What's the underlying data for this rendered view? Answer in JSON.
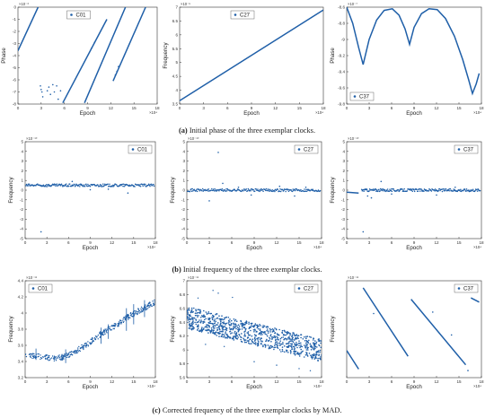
{
  "figure": {
    "captions": [
      {
        "label": "(a)",
        "text": "Initial phase of the three exemplar clocks."
      },
      {
        "label": "(b)",
        "text": "Initial frequency of the three exemplar clocks."
      },
      {
        "label": "(c)",
        "text": "Corrected frequency of the three exemplar clocks by MAD."
      }
    ]
  },
  "chart_data": [
    {
      "id": "a1",
      "type": "scatter",
      "series": [
        {
          "name": "C01"
        }
      ],
      "xlabel": "Epoch",
      "ylabel": "Phase",
      "x_exponent": "×10⁴",
      "y_exponent": "×10⁻³",
      "xlim": [
        0,
        18
      ],
      "ylim": [
        -8,
        0
      ],
      "xticks": [
        0,
        3,
        6,
        9,
        12,
        15,
        18
      ],
      "yticks": [
        0,
        -1,
        -2,
        -3,
        -4,
        -5,
        -6,
        -7,
        -8
      ],
      "legend": "top-center",
      "color": "#1f5fa8",
      "segments": [
        [
          [
            0,
            -3.6
          ],
          [
            2.6,
            0
          ]
        ],
        [
          [
            5.8,
            -7.9
          ],
          [
            11.5,
            -1.0
          ]
        ],
        [
          [
            8.6,
            -7.9
          ],
          [
            13.9,
            0
          ]
        ],
        [
          [
            12.3,
            -6.1
          ],
          [
            16.5,
            0
          ]
        ]
      ],
      "points": [
        [
          2.9,
          -6.5
        ],
        [
          3.0,
          -6.8
        ],
        [
          3.1,
          -7.0
        ],
        [
          3.2,
          -7.4
        ],
        [
          3.8,
          -6.9
        ],
        [
          4.0,
          -6.6
        ],
        [
          4.2,
          -7.2
        ],
        [
          4.5,
          -6.4
        ],
        [
          4.7,
          -7.0
        ],
        [
          5.0,
          -6.5
        ],
        [
          5.2,
          -7.6
        ],
        [
          5.5,
          -6.9
        ],
        [
          12.6,
          -5.6
        ],
        [
          12.8,
          -5.3
        ],
        [
          13.0,
          -4.9
        ],
        [
          9.5,
          -3.4
        ],
        [
          9.9,
          -2.9
        ]
      ]
    },
    {
      "id": "a2",
      "type": "line",
      "series": [
        {
          "name": "C27"
        }
      ],
      "xlabel": "Epoch",
      "ylabel": "Frequency",
      "x_exponent": "×10⁴",
      "y_exponent": "×10⁻⁵",
      "xlim": [
        0,
        18
      ],
      "ylim": [
        3.5,
        7
      ],
      "xticks": [
        0,
        3,
        6,
        9,
        12,
        15,
        18
      ],
      "yticks": [
        3.5,
        4,
        4.5,
        5,
        5.5,
        6,
        6.5,
        7
      ],
      "legend": "top-center",
      "color": "#1f5fa8",
      "segments": [
        [
          [
            0,
            3.62
          ],
          [
            18,
            6.9
          ]
        ]
      ],
      "points": []
    },
    {
      "id": "a3",
      "type": "line",
      "series": [
        {
          "name": "C37"
        }
      ],
      "xlabel": "Epoch",
      "ylabel": "Phase",
      "x_exponent": "×10⁴",
      "y_exponent": "×10⁻⁷",
      "xlim": [
        0,
        18
      ],
      "ylim": [
        -9.8,
        -8.6
      ],
      "xticks": [
        0,
        3,
        6,
        9,
        12,
        15,
        18
      ],
      "yticks": [
        -8.6,
        -8.8,
        -9,
        -9.2,
        -9.4,
        -9.6,
        -9.8
      ],
      "legend": "bottom-left",
      "color": "#1f5fa8",
      "segments": [
        [
          [
            0,
            -8.6
          ],
          [
            0.8,
            -8.8
          ],
          [
            1.6,
            -9.1
          ],
          [
            2.2,
            -9.31
          ],
          [
            3.0,
            -9.0
          ],
          [
            4.0,
            -8.76
          ],
          [
            5.0,
            -8.64
          ],
          [
            6.1,
            -8.62
          ],
          [
            7.0,
            -8.7
          ],
          [
            7.8,
            -8.87
          ],
          [
            8.4,
            -9.06
          ],
          [
            9.0,
            -8.85
          ],
          [
            10.0,
            -8.68
          ],
          [
            11.0,
            -8.62
          ],
          [
            12.1,
            -8.63
          ],
          [
            13.2,
            -8.74
          ],
          [
            14.4,
            -8.96
          ],
          [
            15.5,
            -9.25
          ],
          [
            16.3,
            -9.5
          ],
          [
            16.8,
            -9.67
          ],
          [
            17.3,
            -9.55
          ],
          [
            17.7,
            -9.42
          ]
        ]
      ],
      "points": []
    },
    {
      "id": "b1",
      "type": "scatter",
      "series": [
        {
          "name": "C01"
        }
      ],
      "xlabel": "Epoch",
      "ylabel": "Frequency",
      "x_exponent": "×10⁴",
      "y_exponent": "×10⁻¹⁰",
      "xlim": [
        0,
        18
      ],
      "ylim": [
        -5,
        5
      ],
      "xticks": [
        0,
        3,
        6,
        9,
        12,
        15,
        18
      ],
      "yticks": [
        5,
        4,
        3,
        2,
        1,
        0,
        -1,
        -2,
        -3,
        -4,
        -5
      ],
      "legend": "top-right",
      "color": "#1f5fa8",
      "band": {
        "y": 0.5,
        "half": 0.14,
        "x0": 0.1,
        "x1": 17.9
      },
      "points": [
        [
          2.2,
          -4.3
        ],
        [
          14.2,
          -0.3
        ],
        [
          6.5,
          0.9
        ],
        [
          11.5,
          0.1
        ],
        [
          9.0,
          0.05
        ]
      ]
    },
    {
      "id": "b2",
      "type": "scatter",
      "series": [
        {
          "name": "C27"
        }
      ],
      "xlabel": "Epoch",
      "ylabel": "Frequency",
      "x_exponent": "×10⁴",
      "y_exponent": "×10⁻¹⁰",
      "xlim": [
        0,
        18
      ],
      "ylim": [
        -5,
        5
      ],
      "xticks": [
        0,
        3,
        6,
        9,
        12,
        15,
        18
      ],
      "yticks": [
        5,
        4,
        3,
        2,
        1,
        0,
        -1,
        -2,
        -3,
        -4,
        -5
      ],
      "legend": "top-right",
      "color": "#1f5fa8",
      "band": {
        "y": 0.0,
        "half": 0.14,
        "x0": 0.1,
        "x1": 17.9
      },
      "points": [
        [
          3.0,
          -1.1
        ],
        [
          4.2,
          3.9
        ],
        [
          4.8,
          0.7
        ],
        [
          6.9,
          0.3
        ],
        [
          8.6,
          -0.5
        ],
        [
          12.4,
          0.4
        ],
        [
          14.4,
          -0.6
        ],
        [
          15.9,
          0.3
        ]
      ]
    },
    {
      "id": "b3",
      "type": "scatter",
      "series": [
        {
          "name": "C37"
        }
      ],
      "xlabel": "Epoch",
      "ylabel": "Frequency",
      "x_exponent": "×10⁴",
      "y_exponent": "×10⁻¹⁰",
      "xlim": [
        0,
        18
      ],
      "ylim": [
        -5,
        5
      ],
      "xticks": [
        0,
        3,
        6,
        9,
        12,
        15,
        18
      ],
      "yticks": [
        5,
        4,
        3,
        2,
        1,
        0,
        -1,
        -2,
        -3,
        -4,
        -5
      ],
      "legend": "top-right",
      "color": "#1f5fa8",
      "band": {
        "y": 0.0,
        "half": 0.14,
        "x0": 2.0,
        "x1": 17.9
      },
      "segments": [
        [
          [
            0,
            -0.2
          ],
          [
            1.6,
            -0.3
          ]
        ]
      ],
      "points": [
        [
          2.2,
          -4.3
        ],
        [
          2.8,
          -0.6
        ],
        [
          3.3,
          -0.8
        ],
        [
          4.6,
          0.9
        ],
        [
          6.0,
          -0.4
        ],
        [
          12.0,
          -0.5
        ],
        [
          14.5,
          0.3
        ]
      ]
    },
    {
      "id": "c1",
      "type": "scatter",
      "series": [
        {
          "name": "C01"
        }
      ],
      "xlabel": "Epoch",
      "ylabel": "Frequency",
      "x_exponent": "×10⁴",
      "y_exponent": "×10⁻¹¹",
      "xlim": [
        0,
        18
      ],
      "ylim": [
        3.2,
        4.4
      ],
      "xticks": [
        0,
        3,
        6,
        9,
        12,
        15,
        18
      ],
      "yticks": [
        3.2,
        3.4,
        3.6,
        3.8,
        4.0,
        4.2,
        4.4
      ],
      "legend": "top-left",
      "color": "#1f5fa8",
      "curve": [
        [
          0,
          3.48
        ],
        [
          1,
          3.47
        ],
        [
          2,
          3.46
        ],
        [
          3,
          3.45
        ],
        [
          4,
          3.44
        ],
        [
          5,
          3.45
        ],
        [
          6,
          3.48
        ],
        [
          7,
          3.53
        ],
        [
          8,
          3.58
        ],
        [
          9,
          3.64
        ],
        [
          10,
          3.71
        ],
        [
          11,
          3.77
        ],
        [
          12,
          3.82
        ],
        [
          13,
          3.88
        ],
        [
          14,
          3.94
        ],
        [
          15,
          3.99
        ],
        [
          16,
          4.04
        ],
        [
          17,
          4.09
        ],
        [
          17.9,
          4.13
        ]
      ],
      "spread": 0.035,
      "spikes": [
        [
          1.5,
          3.42,
          3.56
        ],
        [
          5.6,
          3.38,
          3.55
        ],
        [
          10.5,
          3.62,
          3.82
        ],
        [
          11.5,
          3.68,
          3.86
        ],
        [
          14.0,
          3.78,
          4.06
        ],
        [
          15.0,
          3.86,
          4.11
        ],
        [
          16.5,
          3.95,
          4.16
        ]
      ]
    },
    {
      "id": "c2",
      "type": "scatter",
      "series": [
        {
          "name": "C27"
        }
      ],
      "xlabel": "Epoch",
      "ylabel": "Frequency",
      "x_exponent": "×10⁴",
      "y_exponent": "×10⁻¹¹",
      "xlim": [
        0,
        18
      ],
      "ylim": [
        5.6,
        7
      ],
      "xticks": [
        0,
        3,
        6,
        9,
        12,
        15,
        18
      ],
      "yticks": [
        5.6,
        5.8,
        6,
        6.2,
        6.4,
        6.6,
        6.8,
        7
      ],
      "legend": "top-right",
      "color": "#1f5fa8",
      "curve": [
        [
          0,
          6.47
        ],
        [
          18,
          5.99
        ]
      ],
      "spread": 0.16,
      "dense": true,
      "outliers": [
        [
          3.5,
          6.86
        ],
        [
          4.2,
          6.82
        ],
        [
          6.1,
          6.76
        ],
        [
          1.5,
          6.75
        ],
        [
          9.0,
          5.83
        ],
        [
          12.0,
          5.78
        ],
        [
          15.0,
          5.73
        ],
        [
          16.5,
          5.7
        ],
        [
          2.5,
          6.08
        ],
        [
          5.0,
          6.05
        ]
      ]
    },
    {
      "id": "c3",
      "type": "scatter",
      "series": [
        {
          "name": "C37"
        }
      ],
      "xlabel": "Epoch",
      "ylabel": "Frequency",
      "x_exponent": "×10⁴",
      "y_exponent": "×10⁻¹¹",
      "xlim": [
        0,
        18
      ],
      "ylim": [
        -1.8,
        1.6
      ],
      "xticks": [
        0,
        3,
        6,
        9,
        12,
        15,
        18
      ],
      "yticks": [],
      "legend": "top-right",
      "color": "#1f5fa8",
      "segments": [
        [
          [
            0,
            -0.85
          ],
          [
            1.6,
            -1.5
          ]
        ],
        [
          [
            2.2,
            1.35
          ],
          [
            8.2,
            -1.05
          ]
        ],
        [
          [
            8.6,
            0.95
          ],
          [
            15.9,
            -1.35
          ]
        ],
        [
          [
            16.6,
            1.0
          ],
          [
            17.7,
            0.85
          ]
        ]
      ],
      "points": [
        [
          3.6,
          0.45
        ],
        [
          11.5,
          0.5
        ],
        [
          14.0,
          -0.3
        ],
        [
          16.2,
          -1.55
        ]
      ]
    }
  ]
}
